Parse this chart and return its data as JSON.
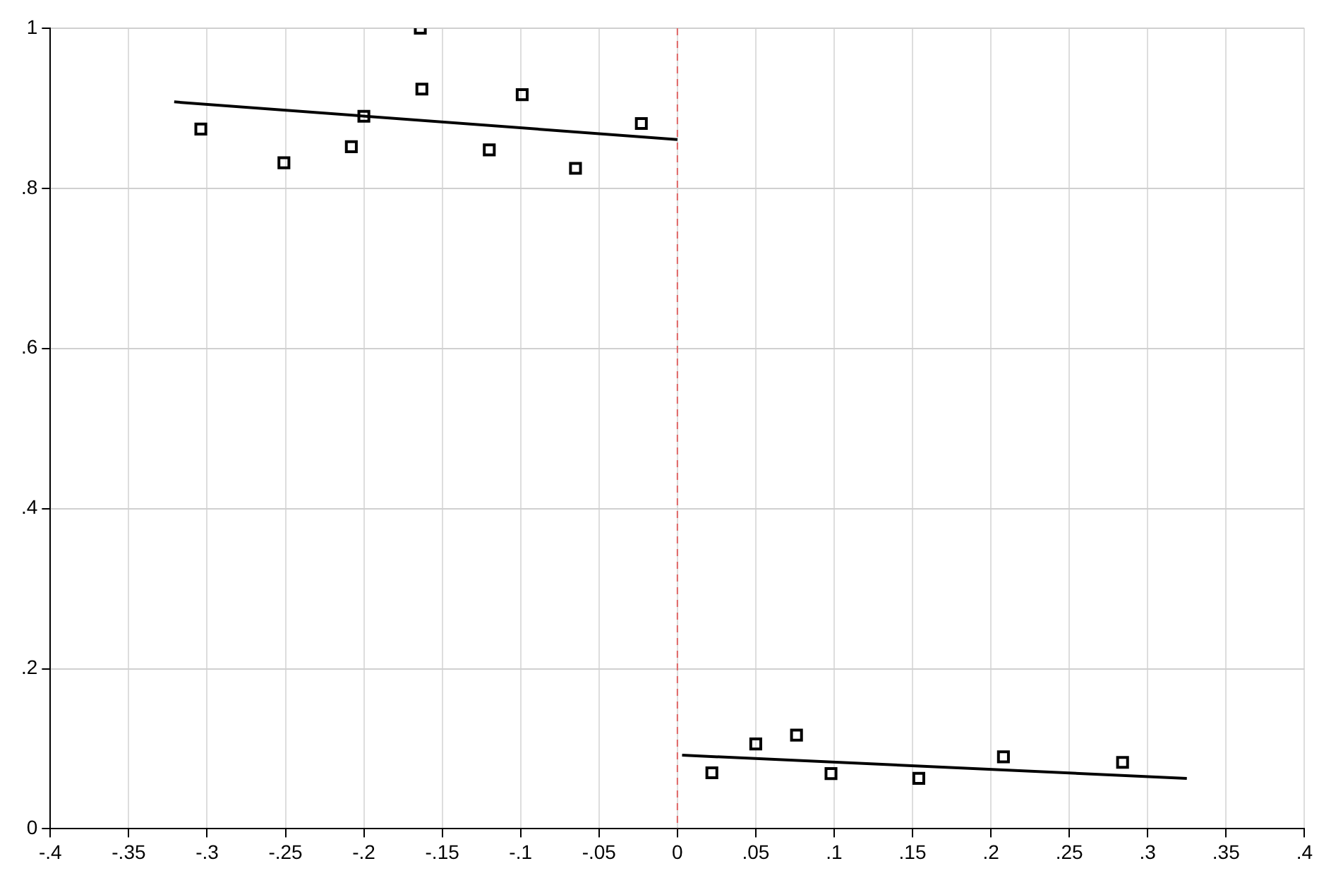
{
  "chart_data": {
    "type": "scatter",
    "marker": "square",
    "grid": true,
    "legend": false,
    "xlim": [
      -0.4,
      0.4
    ],
    "ylim": [
      0,
      1
    ],
    "xticks": [
      {
        "value": -0.4,
        "label": "-.4"
      },
      {
        "value": -0.35,
        "label": "-.35"
      },
      {
        "value": -0.3,
        "label": "-.3"
      },
      {
        "value": -0.25,
        "label": "-.25"
      },
      {
        "value": -0.2,
        "label": "-.2"
      },
      {
        "value": -0.15,
        "label": "-.15"
      },
      {
        "value": -0.1,
        "label": "-.1"
      },
      {
        "value": -0.05,
        "label": "-.05"
      },
      {
        "value": 0,
        "label": "0"
      },
      {
        "value": 0.05,
        "label": ".05"
      },
      {
        "value": 0.1,
        "label": ".1"
      },
      {
        "value": 0.15,
        "label": ".15"
      },
      {
        "value": 0.2,
        "label": ".2"
      },
      {
        "value": 0.25,
        "label": ".25"
      },
      {
        "value": 0.3,
        "label": ".3"
      },
      {
        "value": 0.35,
        "label": ".35"
      },
      {
        "value": 0.4,
        "label": ".4"
      }
    ],
    "yticks": [
      0,
      {
        "value": 0.2,
        "label": ".2"
      },
      {
        "value": 0.4,
        "label": ".4"
      },
      {
        "value": 0.6,
        "label": ".6"
      },
      {
        "value": 0.8,
        "label": ".8"
      },
      1
    ],
    "ref_lines": [
      {
        "axis": "x",
        "value": 0,
        "color": "#e06666",
        "line_style": "dashed"
      }
    ],
    "series": [
      {
        "type": "scatter",
        "color": "#000000",
        "x": [
          -0.304,
          -0.251,
          -0.208,
          -0.2,
          -0.164,
          -0.163,
          -0.12,
          -0.099,
          -0.065,
          -0.023
        ],
        "values": [
          0.874,
          0.832,
          0.852,
          0.89,
          1.0,
          0.924,
          0.848,
          0.917,
          0.825,
          0.881
        ]
      },
      {
        "type": "scatter",
        "color": "#000000",
        "x": [
          0.022,
          0.05,
          0.076,
          0.098,
          0.154,
          0.208,
          0.284
        ],
        "values": [
          0.07,
          0.106,
          0.117,
          0.069,
          0.063,
          0.09,
          0.083
        ]
      },
      {
        "type": "line",
        "color": "#000000",
        "marker": "none",
        "x": [
          -0.321,
          0
        ],
        "values": [
          0.908,
          0.861
        ]
      },
      {
        "type": "line",
        "color": "#000000",
        "marker": "none",
        "x": [
          0.003,
          0.325
        ],
        "values": [
          0.092,
          0.063
        ]
      }
    ]
  }
}
